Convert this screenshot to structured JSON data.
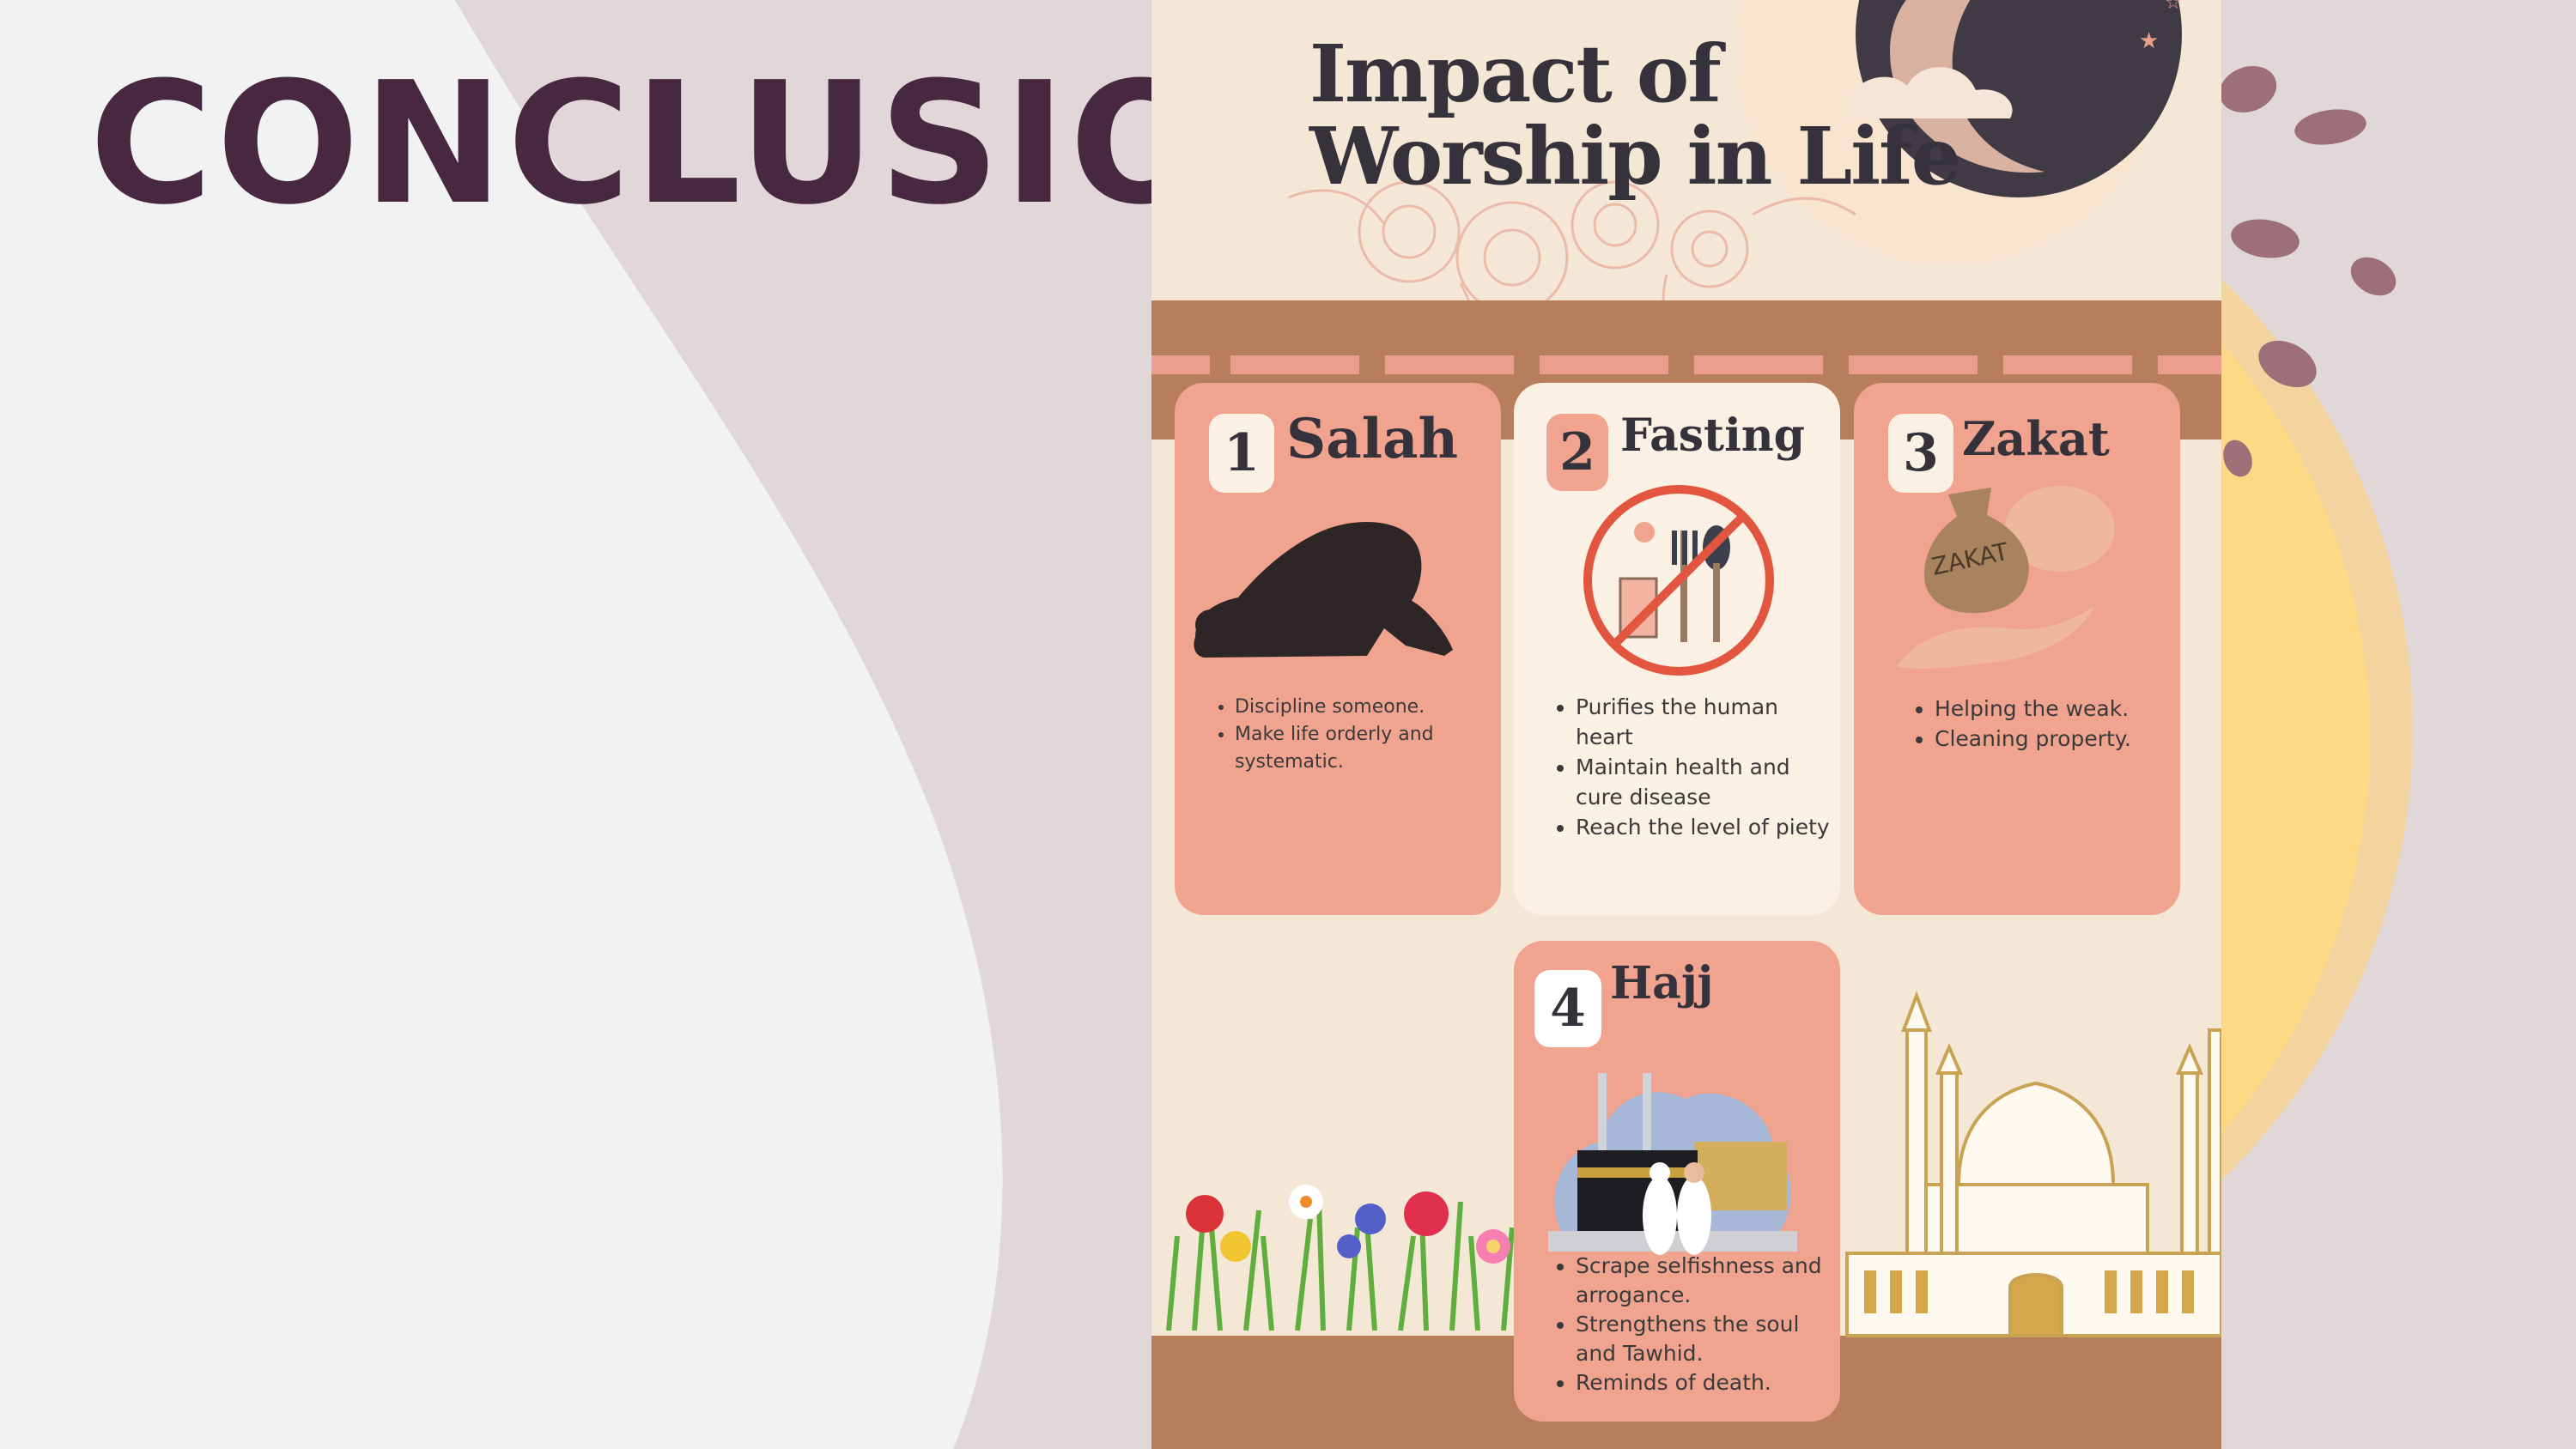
{
  "slide": {
    "title": "CONCLUSION"
  },
  "poster": {
    "title_line1": "Impact of",
    "title_line2": "Worship in Life",
    "cards": [
      {
        "number": "1",
        "title": "Salah",
        "icon": "prostrating-person-icon",
        "points": [
          "Discipline someone.",
          "Make life orderly and systematic."
        ]
      },
      {
        "number": "2",
        "title": "Fasting",
        "icon": "no-eating-icon",
        "points": [
          "Purifies the human heart",
          "Maintain health and cure disease",
          "Reach the level of piety"
        ]
      },
      {
        "number": "3",
        "title": "Zakat",
        "icon": "zakat-bag-icon",
        "bag_label": "ZAKAT",
        "points": [
          "Helping the weak.",
          "Cleaning property."
        ]
      },
      {
        "number": "4",
        "title": "Hajj",
        "icon": "kaaba-pilgrims-icon",
        "points": [
          "Scrape selfishness and arrogance.",
          "Strengthens the soul and Tawhid.",
          "Reminds of death."
        ]
      }
    ]
  },
  "colors": {
    "title_purple": "#482840",
    "poster_cream": "#f5e7d5",
    "card_pink": "#f0a490",
    "card_cream": "#faf0e4",
    "beam_brown": "#b77e5c",
    "dark_text": "#35323c",
    "sun_yellow": "#fdd985"
  }
}
